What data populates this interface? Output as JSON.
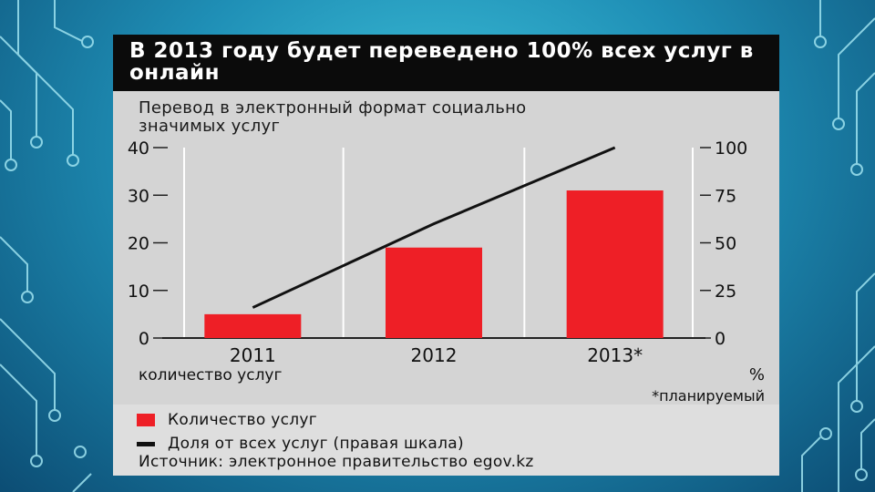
{
  "title": "В 2013 году будет переведено 100% всех услуг в онлайн",
  "footnote": "*планируемый",
  "source": "Источник: электронное правительство egov.kz",
  "colors": {
    "bar": "#ee1f26",
    "line": "#111111",
    "panel": "#d4d4d4",
    "header": "#0b0b0b"
  },
  "legend": [
    {
      "label": "Количество услуг",
      "color": "#ee1f26",
      "marker": "box"
    },
    {
      "label": "Доля от всех услуг (правая шкала)",
      "color": "#111111",
      "marker": "line"
    }
  ],
  "chart_data": {
    "type": "bar",
    "title": "Перевод в электронный формат социально значимых услуг",
    "categories": [
      "2011",
      "2012",
      "2013*"
    ],
    "xlabel": "количество услуг",
    "ylabel_right": "%",
    "ylim": [
      0,
      40
    ],
    "y2lim": [
      0,
      100
    ],
    "yticks": [
      "0",
      "10",
      "20",
      "30",
      "40"
    ],
    "y2ticks": [
      "0",
      "25",
      "50",
      "75",
      "100"
    ],
    "series": [
      {
        "name": "Количество услуг",
        "kind": "bar",
        "axis": "left",
        "values": [
          5,
          19,
          31
        ]
      },
      {
        "name": "Доля от всех услуг (правая шкала)",
        "kind": "line",
        "axis": "right",
        "values": [
          16,
          60,
          100
        ]
      }
    ],
    "grid": true
  }
}
